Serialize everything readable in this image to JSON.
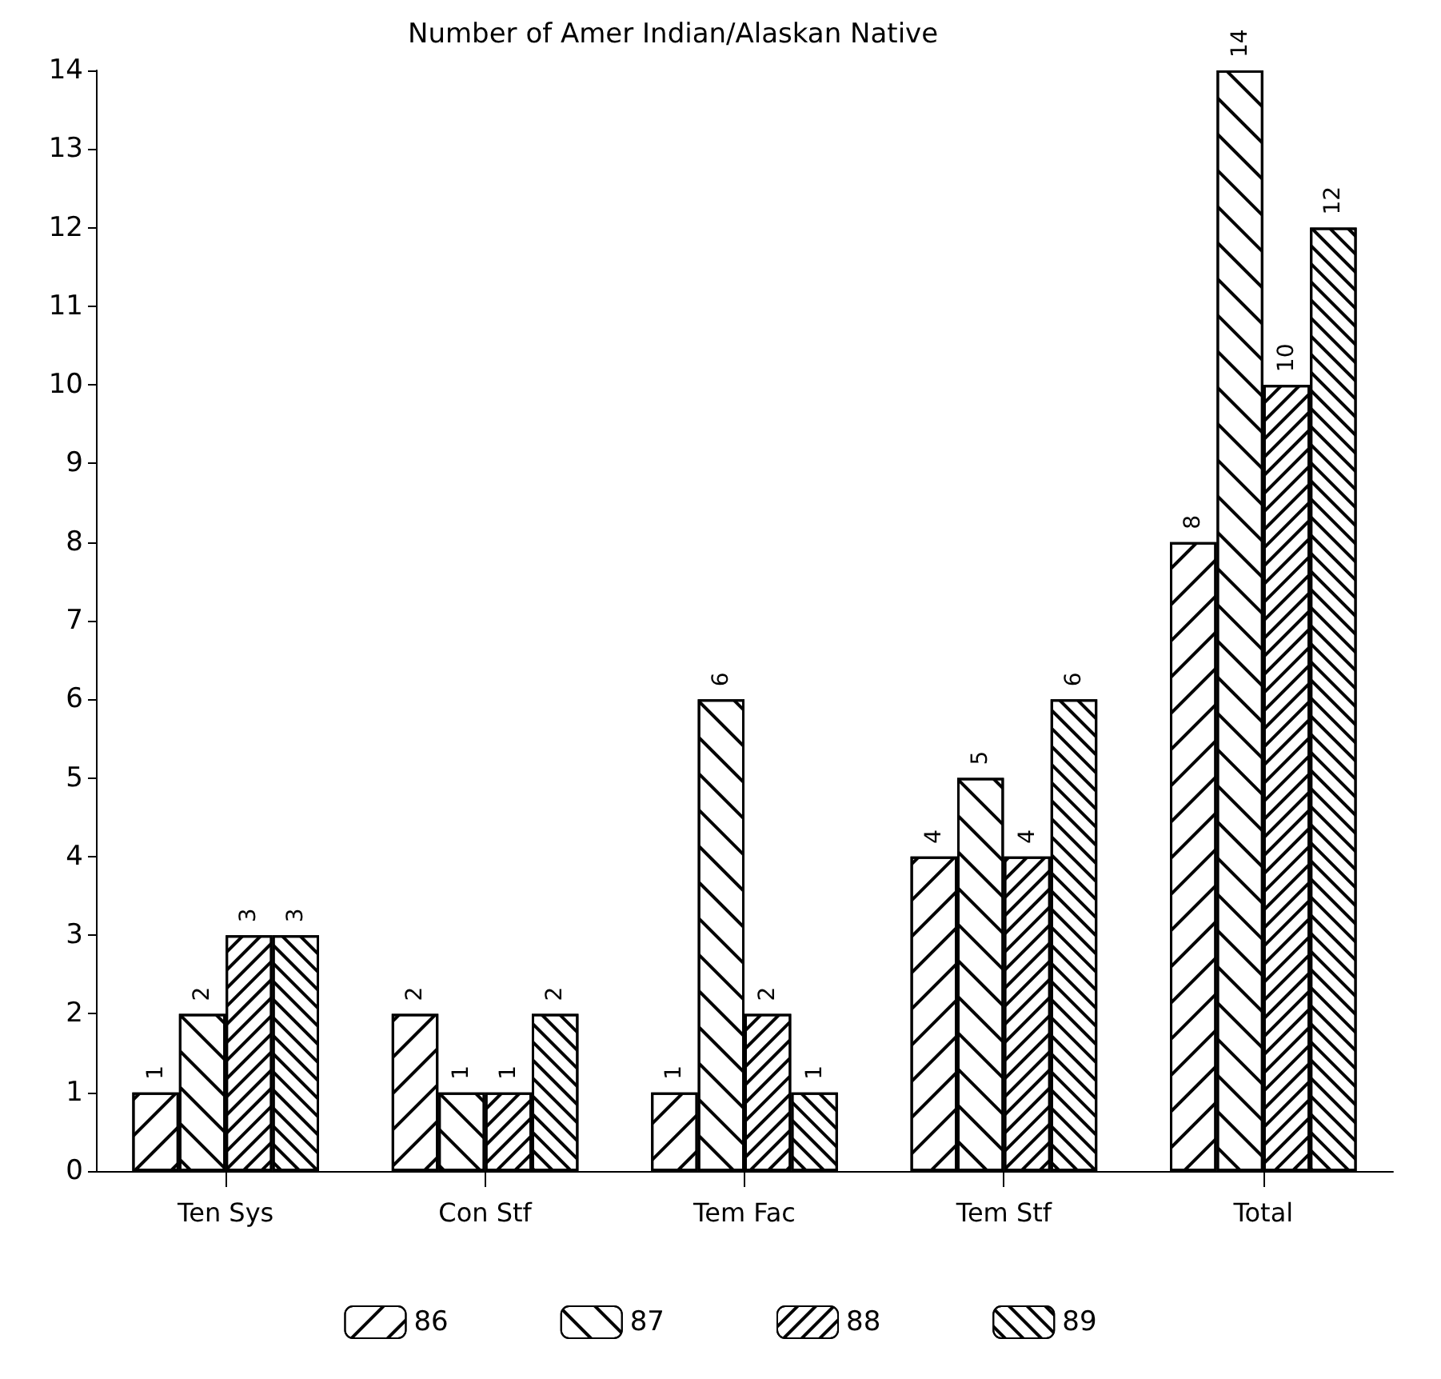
{
  "chart_data": {
    "type": "bar",
    "title": "Number of Amer Indian/Alaskan Native",
    "categories": [
      "Ten Sys",
      "Con Stf",
      "Tem Fac",
      "Tem Stf",
      "Total"
    ],
    "series": [
      {
        "name": "86",
        "color": "#ffffff",
        "values": [
          1,
          2,
          1,
          4,
          8
        ]
      },
      {
        "name": "87",
        "color": "#ffffff",
        "values": [
          2,
          1,
          6,
          5,
          14
        ]
      },
      {
        "name": "88",
        "color": "#ffffff",
        "values": [
          3,
          1,
          2,
          4,
          10
        ]
      },
      {
        "name": "89",
        "color": "#ffffff",
        "values": [
          3,
          2,
          1,
          6,
          12
        ]
      }
    ],
    "ylim": [
      0,
      14
    ],
    "yticks": [
      0,
      1,
      2,
      3,
      4,
      5,
      6,
      7,
      8,
      9,
      10,
      11,
      12,
      13,
      14
    ],
    "grid": false,
    "legend": "bottom",
    "data_labels": true
  }
}
